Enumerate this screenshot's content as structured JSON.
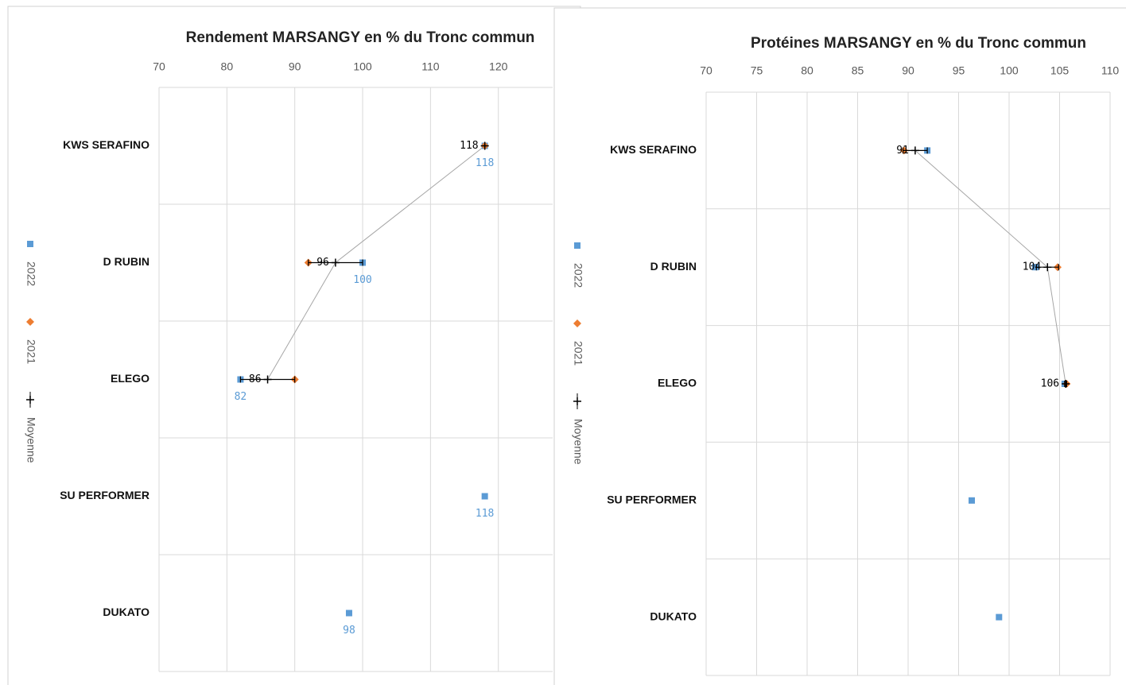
{
  "chart_data": [
    {
      "type": "dot",
      "title": "Rendement MARSANGY en % du Tronc commun",
      "categories": [
        "KWS SERAFINO",
        "D RUBIN",
        "ELEGO",
        "SU PERFORMER",
        "DUKATO"
      ],
      "xlim": [
        70,
        128
      ],
      "xticks": [
        70,
        80,
        90,
        100,
        110,
        120
      ],
      "grid": true,
      "series": [
        {
          "name": "2022",
          "color": "#5b9bd5",
          "marker": "square",
          "labels": true,
          "values": [
            118,
            100,
            82,
            118,
            98
          ]
        },
        {
          "name": "2021",
          "color": "#ed7d31",
          "marker": "diamond",
          "labels": false,
          "values": [
            118,
            92,
            90,
            null,
            null
          ]
        },
        {
          "name": "Moyenne",
          "color": "#000000",
          "marker": "plus",
          "labels": true,
          "line": true,
          "values": [
            118,
            96,
            86,
            null,
            null
          ],
          "errors": [
            0,
            4,
            4,
            null,
            null
          ]
        }
      ]
    },
    {
      "type": "dot",
      "title": "Protéines MARSANGY en % du Tronc commun",
      "categories": [
        "KWS SERAFINO",
        "D RUBIN",
        "ELEGO",
        "SU PERFORMER",
        "DUKATO"
      ],
      "xlim": [
        70,
        110
      ],
      "xticks": [
        70,
        75,
        80,
        85,
        90,
        95,
        100,
        105,
        110
      ],
      "grid": true,
      "series": [
        {
          "name": "2022",
          "color": "#5b9bd5",
          "marker": "square",
          "labels": false,
          "values": [
            91.9,
            102.6,
            105.5,
            96.3,
            99.0
          ]
        },
        {
          "name": "2021",
          "color": "#ed7d31",
          "marker": "diamond",
          "labels": false,
          "values": [
            89.6,
            104.8,
            105.7,
            null,
            null
          ]
        },
        {
          "name": "Moyenne",
          "color": "#000000",
          "marker": "plus",
          "labels": true,
          "line": true,
          "values": [
            90.7,
            103.8,
            105.6,
            null,
            null
          ],
          "value_labels": [
            "91",
            "104",
            "106",
            null,
            null
          ],
          "errors": [
            1.2,
            1.1,
            0.1,
            null,
            null
          ]
        }
      ]
    }
  ]
}
